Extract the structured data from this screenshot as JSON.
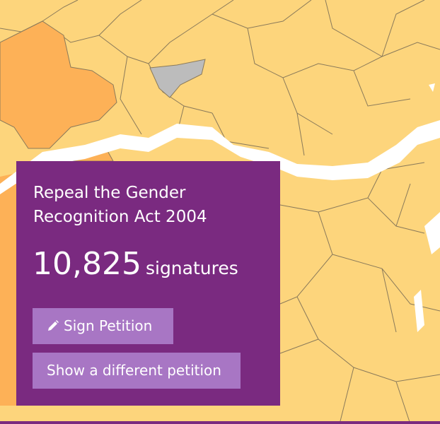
{
  "petition": {
    "title": "Repeal the Gender Recognition Act 2004",
    "count": "10,825",
    "unit": "signatures"
  },
  "buttons": {
    "sign": "Sign Petition",
    "other": "Show a different petition"
  }
}
